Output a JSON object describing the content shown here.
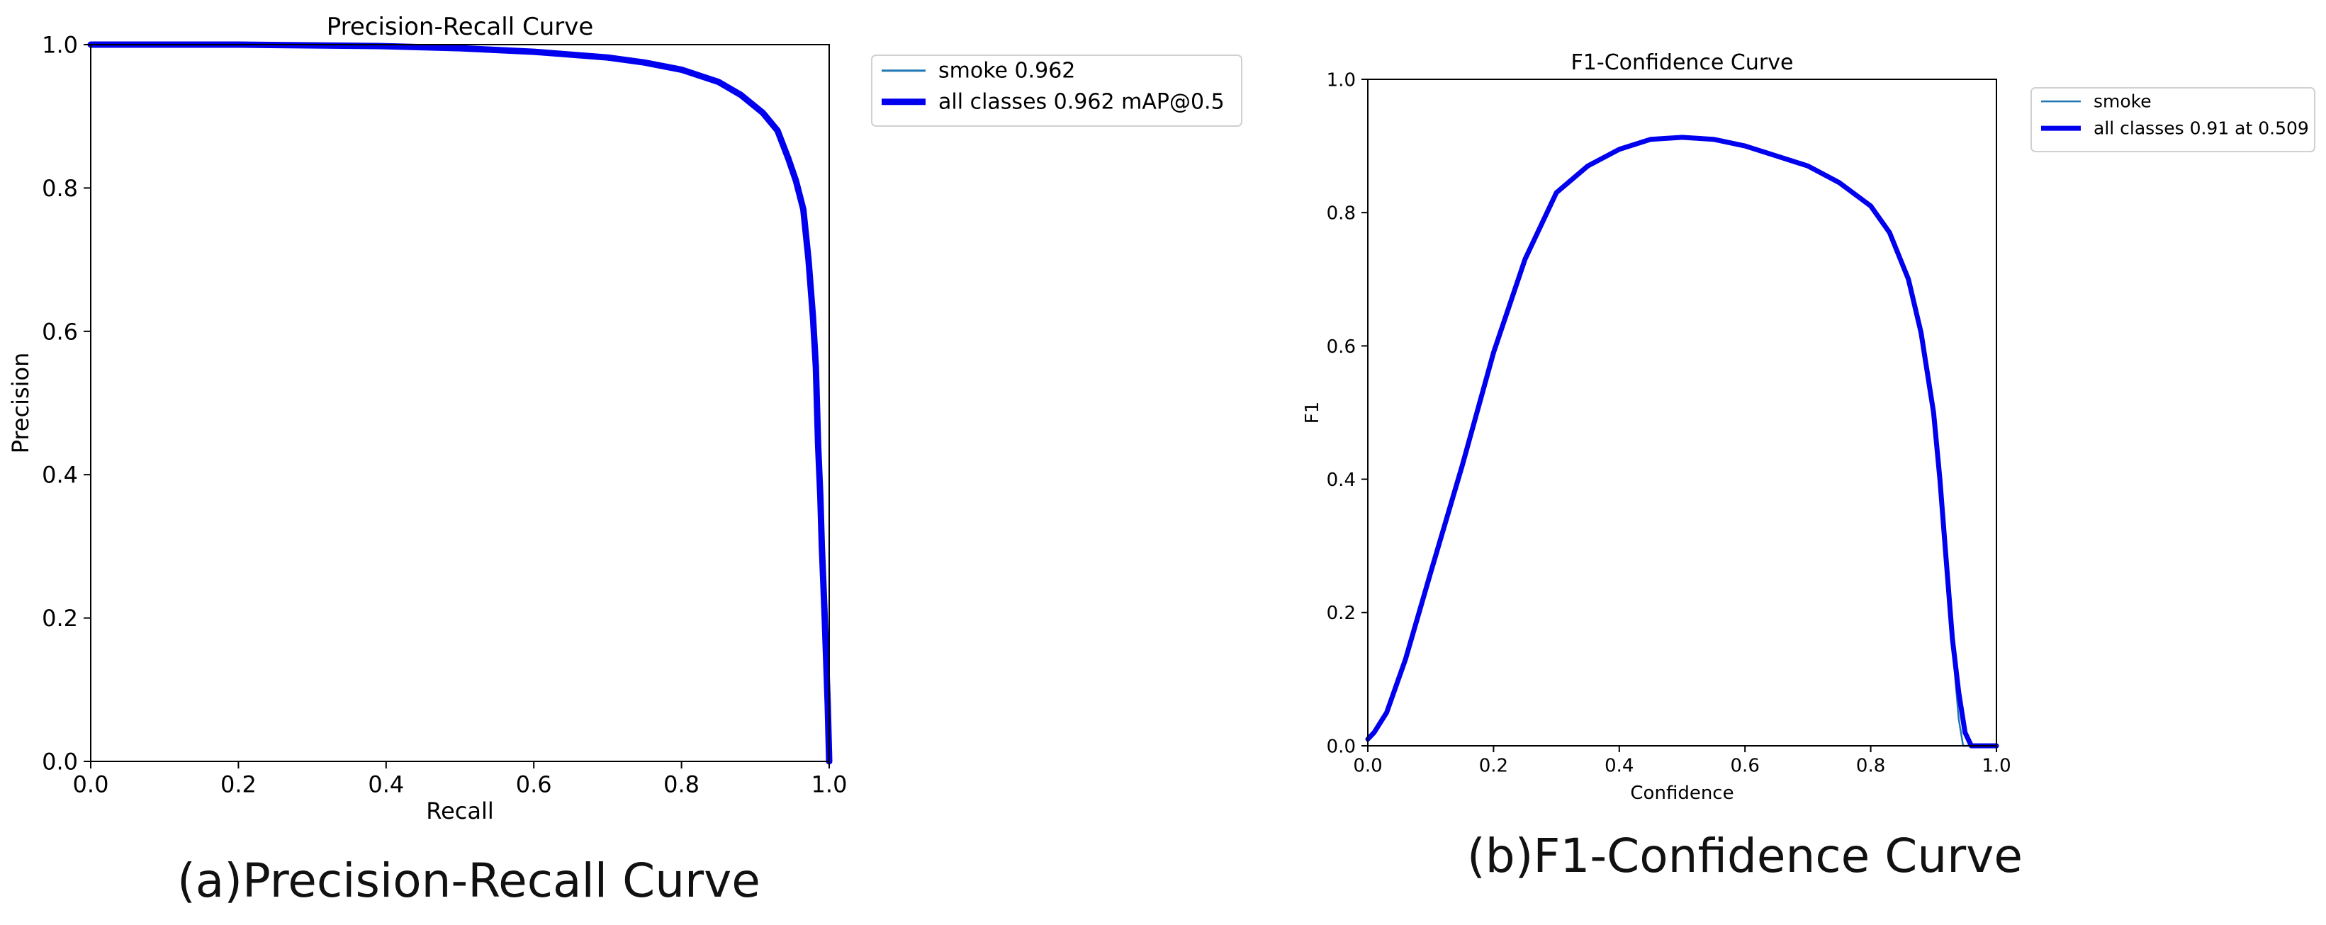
{
  "figure": {
    "caption_a": "(a)Precision-Recall Curve",
    "caption_b": "(b)F1-Confidence Curve"
  },
  "colors": {
    "thin_line": "#1f77b4",
    "thick_line": "#0000ee"
  },
  "chart_data": [
    {
      "type": "line",
      "title": "Precision-Recall Curve",
      "xlabel": "Recall",
      "ylabel": "Precision",
      "xlim": [
        0,
        1
      ],
      "ylim": [
        0,
        1
      ],
      "xticks": [
        "0.0",
        "0.2",
        "0.4",
        "0.6",
        "0.8",
        "1.0"
      ],
      "yticks": [
        "0.0",
        "0.2",
        "0.4",
        "0.6",
        "0.8",
        "1.0"
      ],
      "grid": false,
      "legend_position": "outside-right",
      "series": [
        {
          "name": "smoke 0.962",
          "style": "thin",
          "x": [
            0,
            0.2,
            0.39,
            0.5,
            0.6,
            0.7,
            0.75,
            0.8,
            0.85,
            0.88,
            0.91,
            0.93,
            0.945,
            0.955,
            0.965,
            0.972,
            0.978,
            0.982,
            0.985,
            0.988,
            0.99,
            0.992,
            0.994,
            0.996,
            0.998,
            1.0
          ],
          "y": [
            1.0,
            1.0,
            0.998,
            0.995,
            0.99,
            0.982,
            0.975,
            0.965,
            0.948,
            0.93,
            0.905,
            0.88,
            0.84,
            0.81,
            0.77,
            0.7,
            0.62,
            0.55,
            0.44,
            0.37,
            0.3,
            0.25,
            0.2,
            0.14,
            0.08,
            0.0
          ]
        },
        {
          "name": "all classes 0.962 mAP@0.5",
          "style": "thick",
          "x": [
            0,
            0.2,
            0.39,
            0.5,
            0.6,
            0.7,
            0.75,
            0.8,
            0.85,
            0.88,
            0.91,
            0.93,
            0.945,
            0.955,
            0.965,
            0.972,
            0.978,
            0.982,
            0.985,
            0.988,
            0.99,
            0.992,
            0.994,
            0.996,
            0.998,
            1.0
          ],
          "y": [
            1.0,
            1.0,
            0.998,
            0.995,
            0.99,
            0.982,
            0.975,
            0.965,
            0.948,
            0.93,
            0.905,
            0.88,
            0.84,
            0.81,
            0.77,
            0.7,
            0.62,
            0.55,
            0.44,
            0.37,
            0.3,
            0.25,
            0.2,
            0.14,
            0.08,
            0.0
          ]
        }
      ]
    },
    {
      "type": "line",
      "title": "F1-Confidence Curve",
      "xlabel": "Confidence",
      "ylabel": "F1",
      "xlim": [
        0,
        1
      ],
      "ylim": [
        0,
        1
      ],
      "xticks": [
        "0.0",
        "0.2",
        "0.4",
        "0.6",
        "0.8",
        "1.0"
      ],
      "yticks": [
        "0.0",
        "0.2",
        "0.4",
        "0.6",
        "0.8",
        "1.0"
      ],
      "grid": false,
      "legend_position": "outside-right",
      "series": [
        {
          "name": "smoke",
          "style": "thin",
          "x": [
            0,
            0.01,
            0.03,
            0.06,
            0.1,
            0.15,
            0.2,
            0.25,
            0.3,
            0.35,
            0.4,
            0.45,
            0.5,
            0.55,
            0.6,
            0.65,
            0.7,
            0.75,
            0.8,
            0.83,
            0.86,
            0.88,
            0.9,
            0.91,
            0.92,
            0.93,
            0.94,
            0.947,
            0.96,
            1.0
          ],
          "y": [
            0.01,
            0.02,
            0.05,
            0.13,
            0.26,
            0.42,
            0.59,
            0.73,
            0.83,
            0.87,
            0.895,
            0.91,
            0.913,
            0.91,
            0.9,
            0.885,
            0.87,
            0.845,
            0.81,
            0.77,
            0.7,
            0.62,
            0.5,
            0.4,
            0.28,
            0.15,
            0.04,
            0.0,
            0.0,
            0.0
          ]
        },
        {
          "name": "all classes 0.91 at 0.509",
          "style": "thick",
          "x": [
            0,
            0.01,
            0.03,
            0.06,
            0.1,
            0.15,
            0.2,
            0.25,
            0.3,
            0.35,
            0.4,
            0.45,
            0.5,
            0.55,
            0.6,
            0.65,
            0.7,
            0.75,
            0.8,
            0.83,
            0.86,
            0.88,
            0.9,
            0.91,
            0.92,
            0.93,
            0.94,
            0.95,
            0.96,
            0.97,
            1.0
          ],
          "y": [
            0.01,
            0.02,
            0.05,
            0.13,
            0.26,
            0.42,
            0.59,
            0.73,
            0.83,
            0.87,
            0.895,
            0.91,
            0.913,
            0.91,
            0.9,
            0.885,
            0.87,
            0.845,
            0.81,
            0.77,
            0.7,
            0.62,
            0.5,
            0.4,
            0.28,
            0.16,
            0.08,
            0.02,
            0.0,
            0.0,
            0.0
          ]
        }
      ]
    }
  ]
}
